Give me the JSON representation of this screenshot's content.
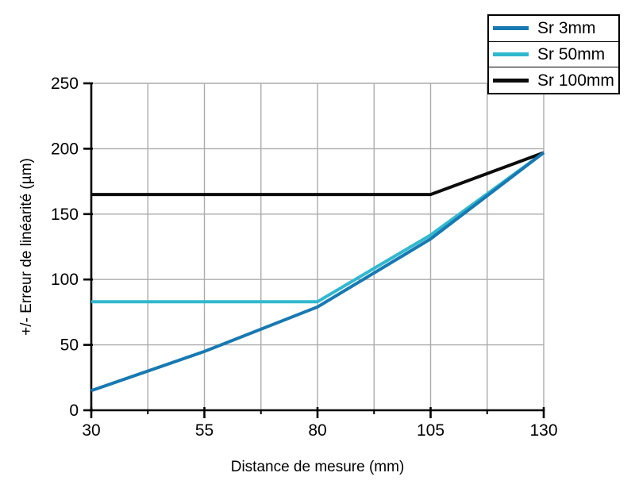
{
  "chart_data": {
    "type": "line",
    "title": "",
    "xlabel": "Distance de mesure (mm)",
    "ylabel": "+/- Erreur de linéarité (µm)",
    "xlim": [
      30,
      130
    ],
    "ylim": [
      0,
      250
    ],
    "x_major_ticks": [
      30,
      55,
      80,
      105,
      130
    ],
    "x_minor_ticks": [
      42.5,
      67.5,
      92.5,
      117.5
    ],
    "y_ticks": [
      0,
      50,
      100,
      150,
      200,
      250
    ],
    "grid": "on",
    "legend_position": "top-right",
    "series": [
      {
        "name": "Sr 3mm",
        "color": "#1879b2",
        "points": [
          [
            30,
            15
          ],
          [
            55,
            45
          ],
          [
            80,
            79
          ],
          [
            105,
            131
          ],
          [
            130,
            197
          ]
        ]
      },
      {
        "name": "Sr 50mm",
        "color": "#31b8ce",
        "points": [
          [
            30,
            83
          ],
          [
            55,
            83
          ],
          [
            80,
            83
          ],
          [
            105,
            134
          ],
          [
            130,
            197
          ]
        ]
      },
      {
        "name": "Sr 100mm",
        "color": "#0b0b0b",
        "points": [
          [
            30,
            165
          ],
          [
            55,
            165
          ],
          [
            80,
            165
          ],
          [
            105,
            165
          ],
          [
            130,
            197
          ]
        ]
      }
    ],
    "colors": {
      "grid": "#ababab",
      "axis": "#000000",
      "text": "#000000",
      "background": "#ffffff"
    }
  }
}
